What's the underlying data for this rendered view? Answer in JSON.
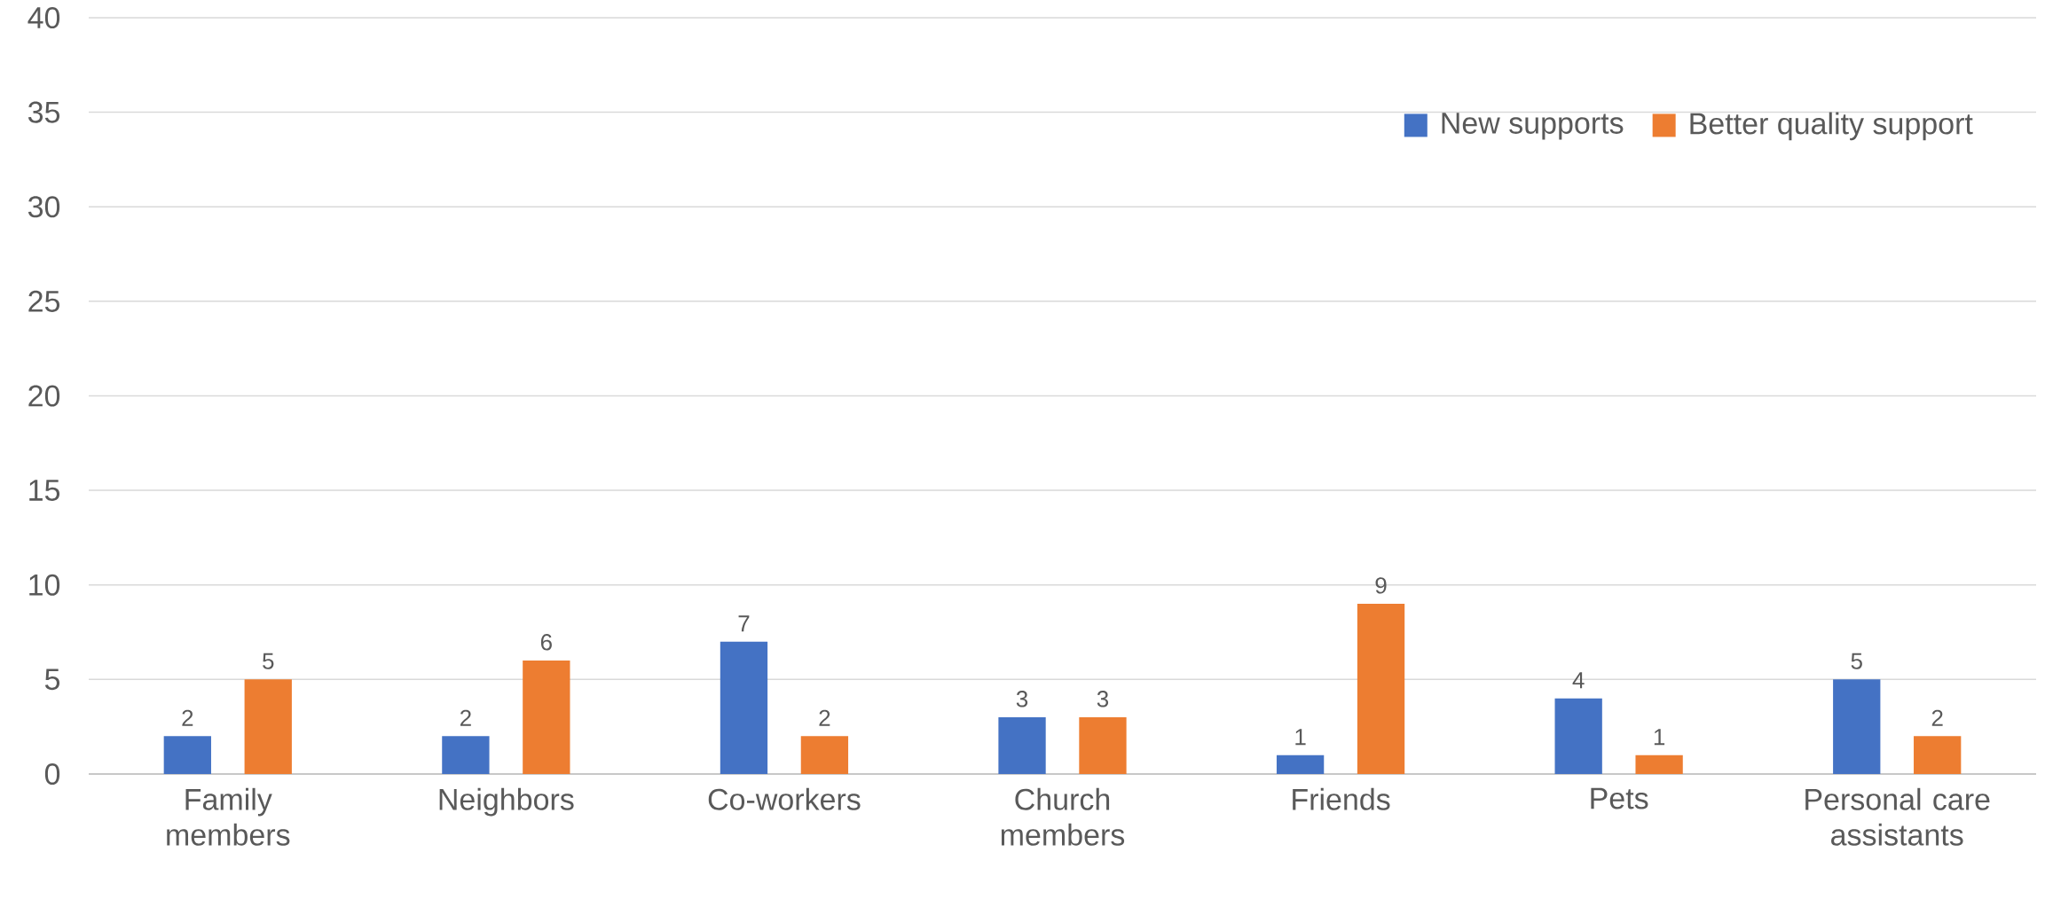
{
  "chart_data": {
    "type": "bar",
    "categories": [
      "Family members",
      "Neighbors",
      "Co-workers",
      "Church members",
      "Friends",
      "Pets",
      "Personal care assistants"
    ],
    "series": [
      {
        "name": "New supports",
        "color": "#4472c4",
        "values": [
          2,
          2,
          7,
          3,
          1,
          4,
          5
        ]
      },
      {
        "name": "Better quality support",
        "color": "#ed7d31",
        "values": [
          5,
          6,
          2,
          3,
          9,
          1,
          2
        ]
      }
    ],
    "ylim": [
      0,
      40
    ],
    "yticks": [
      0,
      5,
      10,
      15,
      20,
      25,
      30,
      35,
      40
    ],
    "grid": "y",
    "legend": "top right",
    "data_labels": true
  }
}
